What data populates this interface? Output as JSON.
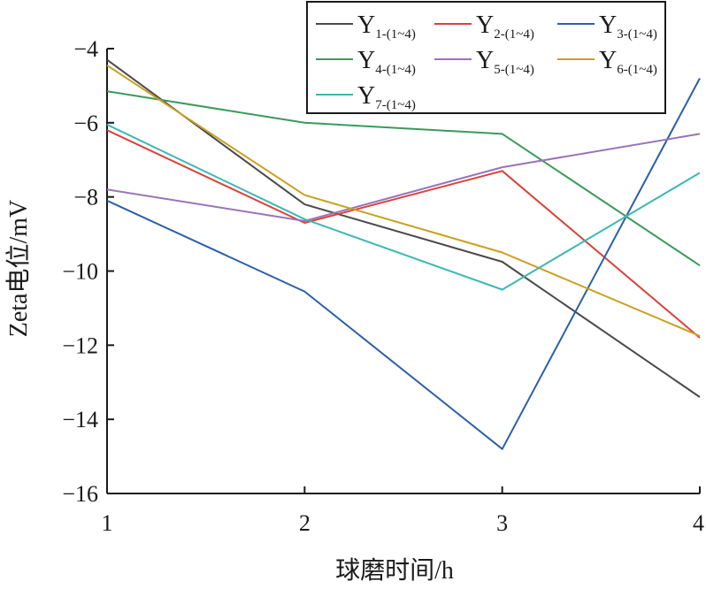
{
  "chart_data": {
    "type": "line",
    "xlabel": "球磨时间/h",
    "ylabel": "Zeta电位/mV",
    "x": [
      1,
      2,
      3,
      4
    ],
    "x_tick_labels": [
      "1",
      "2",
      "3",
      "4"
    ],
    "xlim": [
      1,
      4
    ],
    "ylim": [
      -16,
      -4
    ],
    "y_ticks": [
      -4,
      -6,
      -8,
      -10,
      -12,
      -14,
      -16
    ],
    "y_tick_labels": [
      "−4",
      "−6",
      "−8",
      "−10",
      "−12",
      "−14",
      "−16"
    ],
    "grid": false,
    "legend_position": "top-right",
    "series": [
      {
        "name": "Y",
        "subscript": "1-(1~4)",
        "color": "#4a4a4a",
        "values": [
          -4.3,
          -8.2,
          -9.75,
          -13.4
        ]
      },
      {
        "name": "Y",
        "subscript": "2-(1~4)",
        "color": "#d9423b",
        "values": [
          -6.2,
          -8.7,
          -7.3,
          -11.8
        ]
      },
      {
        "name": "Y",
        "subscript": "3-(1~4)",
        "color": "#2c5fa8",
        "values": [
          -8.1,
          -10.55,
          -14.8,
          -4.8
        ]
      },
      {
        "name": "Y",
        "subscript": "4-(1~4)",
        "color": "#3a9a5b",
        "values": [
          -5.15,
          -6.0,
          -6.3,
          -9.85
        ]
      },
      {
        "name": "Y",
        "subscript": "5-(1~4)",
        "color": "#9b73b8",
        "values": [
          -7.8,
          -8.65,
          -7.2,
          -6.3
        ]
      },
      {
        "name": "Y",
        "subscript": "6-(1~4)",
        "color": "#c9a020",
        "values": [
          -4.45,
          -7.95,
          -9.5,
          -11.75
        ]
      },
      {
        "name": "Y",
        "subscript": "7-(1~4)",
        "color": "#3cb8b2",
        "values": [
          -6.05,
          -8.6,
          -10.5,
          -7.35
        ]
      }
    ]
  }
}
